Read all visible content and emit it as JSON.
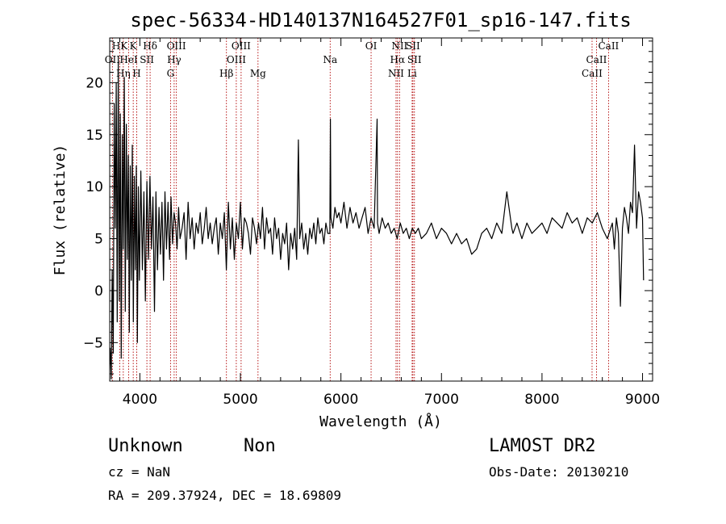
{
  "chart_data": {
    "type": "line",
    "title": "spec-56334-HD140137N164527F01_sp16-147.fits",
    "xlabel": "Wavelength (Å)",
    "ylabel": "Flux (relative)",
    "xlim": [
      3700,
      9100
    ],
    "ylim": [
      -8.7,
      24.3
    ],
    "xticks": [
      4000,
      5000,
      6000,
      7000,
      8000,
      9000
    ],
    "yticks": [
      -5,
      0,
      5,
      10,
      15,
      20
    ],
    "grid": false,
    "legend": "none",
    "series": [
      {
        "color": "#000000",
        "x": [
          3705,
          3715,
          3725,
          3735,
          3745,
          3755,
          3765,
          3775,
          3785,
          3795,
          3805,
          3815,
          3825,
          3835,
          3845,
          3855,
          3865,
          3875,
          3885,
          3895,
          3905,
          3915,
          3925,
          3935,
          3945,
          3955,
          3965,
          3975,
          3985,
          3995,
          4010,
          4025,
          4040,
          4055,
          4070,
          4085,
          4100,
          4115,
          4130,
          4145,
          4160,
          4175,
          4190,
          4205,
          4220,
          4235,
          4250,
          4265,
          4280,
          4295,
          4310,
          4325,
          4340,
          4355,
          4370,
          4385,
          4400,
          4420,
          4440,
          4460,
          4480,
          4500,
          4520,
          4540,
          4560,
          4580,
          4600,
          4620,
          4640,
          4660,
          4680,
          4700,
          4720,
          4740,
          4760,
          4780,
          4800,
          4820,
          4840,
          4860,
          4880,
          4900,
          4920,
          4940,
          4960,
          4980,
          5000,
          5020,
          5040,
          5060,
          5080,
          5100,
          5120,
          5140,
          5160,
          5180,
          5200,
          5220,
          5240,
          5260,
          5280,
          5300,
          5320,
          5340,
          5360,
          5380,
          5400,
          5420,
          5440,
          5460,
          5480,
          5500,
          5520,
          5540,
          5560,
          5577,
          5590,
          5610,
          5630,
          5650,
          5670,
          5690,
          5710,
          5730,
          5750,
          5770,
          5790,
          5810,
          5830,
          5850,
          5870,
          5890,
          5895,
          5900,
          5920,
          5940,
          5960,
          5980,
          6000,
          6030,
          6060,
          6090,
          6120,
          6150,
          6180,
          6210,
          6240,
          6270,
          6300,
          6330,
          6360,
          6364,
          6380,
          6410,
          6440,
          6470,
          6500,
          6530,
          6560,
          6590,
          6620,
          6650,
          6680,
          6710,
          6740,
          6770,
          6800,
          6850,
          6900,
          6950,
          7000,
          7050,
          7100,
          7150,
          7200,
          7250,
          7300,
          7350,
          7400,
          7450,
          7500,
          7550,
          7600,
          7650,
          7700,
          7712,
          7750,
          7800,
          7850,
          7900,
          7950,
          8000,
          8050,
          8100,
          8150,
          8200,
          8250,
          8300,
          8350,
          8400,
          8450,
          8500,
          8550,
          8600,
          8650,
          8700,
          8720,
          8740,
          8760,
          8780,
          8800,
          8820,
          8840,
          8860,
          8880,
          8900,
          8920,
          8940,
          8960,
          8980,
          9000,
          9010
        ],
        "y": [
          -5.5,
          -8.5,
          2.0,
          -6.0,
          18.0,
          6.0,
          20.0,
          -3.0,
          22.0,
          -1.0,
          17.0,
          -6.5,
          15.0,
          4.0,
          20.5,
          -2.0,
          16.0,
          3.0,
          13.0,
          -4.0,
          12.0,
          1.0,
          14.0,
          -3.0,
          11.0,
          2.0,
          12.0,
          -5.0,
          10.0,
          1.0,
          11.5,
          2.0,
          9.5,
          -1.0,
          10.5,
          3.0,
          11.0,
          4.0,
          9.0,
          -2.0,
          9.5,
          2.0,
          8.0,
          3.5,
          8.5,
          1.0,
          9.5,
          4.0,
          8.5,
          3.0,
          9.0,
          4.5,
          7.5,
          6.5,
          4.0,
          8.0,
          5.0,
          6.0,
          7.5,
          3.0,
          8.5,
          5.0,
          7.0,
          4.0,
          6.5,
          5.5,
          7.5,
          4.5,
          6.0,
          8.0,
          5.0,
          6.5,
          4.5,
          6.0,
          7.0,
          3.5,
          6.5,
          5.0,
          7.5,
          2.0,
          8.5,
          4.0,
          7.0,
          3.0,
          6.5,
          5.0,
          8.5,
          4.0,
          7.0,
          6.5,
          5.5,
          3.5,
          7.0,
          6.0,
          4.5,
          6.5,
          5.0,
          8.0,
          4.0,
          7.0,
          5.5,
          6.0,
          3.5,
          7.0,
          5.0,
          6.0,
          3.0,
          5.5,
          4.5,
          6.5,
          2.0,
          5.5,
          4.0,
          6.0,
          3.0,
          14.5,
          5.0,
          6.5,
          4.0,
          5.5,
          3.5,
          6.0,
          5.0,
          6.5,
          4.5,
          7.0,
          5.5,
          6.0,
          4.5,
          6.5,
          5.5,
          5.5,
          16.5,
          7.0,
          6.0,
          8.0,
          7.0,
          7.5,
          6.5,
          8.5,
          6.0,
          8.0,
          6.5,
          7.5,
          6.0,
          7.0,
          8.0,
          5.5,
          7.0,
          6.0,
          16.5,
          6.5,
          5.5,
          7.0,
          6.0,
          6.5,
          5.5,
          6.0,
          5.0,
          6.5,
          5.5,
          6.0,
          5.0,
          6.0,
          5.5,
          6.0,
          5.0,
          5.5,
          6.5,
          5.0,
          6.0,
          5.5,
          4.5,
          5.5,
          4.5,
          5.0,
          3.5,
          4.0,
          5.5,
          6.0,
          5.0,
          6.5,
          5.5,
          9.5,
          6.0,
          5.5,
          6.5,
          5.0,
          6.5,
          5.5,
          6.0,
          6.5,
          5.5,
          7.0,
          6.5,
          6.0,
          7.5,
          6.5,
          7.0,
          5.5,
          7.0,
          6.5,
          7.5,
          6.0,
          5.0,
          6.5,
          4.0,
          7.0,
          5.5,
          -1.5,
          6.0,
          8.0,
          7.0,
          5.5,
          8.5,
          7.5,
          14.0,
          6.0,
          9.5,
          8.5,
          7.0,
          1.0
        ]
      }
    ],
    "lines": [
      {
        "label": "HK",
        "wave": 3800,
        "row": 1
      },
      {
        "label": "OII",
        "wave": 3727,
        "row": 2
      },
      {
        "label": "HeI",
        "wave": 3889,
        "row": 2
      },
      {
        "label": "Hη",
        "wave": 3835,
        "row": 3
      },
      {
        "label": "K",
        "wave": 3934,
        "row": 1
      },
      {
        "label": "H",
        "wave": 3969,
        "row": 3
      },
      {
        "label": "Hδ",
        "wave": 4102,
        "row": 1
      },
      {
        "label": "SII",
        "wave": 4070,
        "row": 2
      },
      {
        "label": "OIII",
        "wave": 4363,
        "row": 1
      },
      {
        "label": "Hγ",
        "wave": 4341,
        "row": 2
      },
      {
        "label": "G",
        "wave": 4305,
        "row": 3
      },
      {
        "label": "OIII",
        "wave": 5007,
        "row": 1
      },
      {
        "label": "OIII",
        "wave": 4959,
        "row": 2
      },
      {
        "label": "Hβ",
        "wave": 4861,
        "row": 3
      },
      {
        "label": "Mg",
        "wave": 5175,
        "row": 3
      },
      {
        "label": "Na",
        "wave": 5893,
        "row": 2
      },
      {
        "label": "OI",
        "wave": 6300,
        "row": 1
      },
      {
        "label": "NII",
        "wave": 6583,
        "row": 1
      },
      {
        "label": "Hα",
        "wave": 6563,
        "row": 2
      },
      {
        "label": "NII",
        "wave": 6548,
        "row": 3
      },
      {
        "label": "SII",
        "wave": 6716,
        "row": 1
      },
      {
        "label": "SII",
        "wave": 6731,
        "row": 2
      },
      {
        "label": "Li",
        "wave": 6708,
        "row": 3
      },
      {
        "label": "CaII",
        "wave": 8662,
        "row": 1
      },
      {
        "label": "CaII",
        "wave": 8542,
        "row": 2
      },
      {
        "label": "CaII",
        "wave": 8498,
        "row": 3
      }
    ]
  },
  "info": {
    "class_label": "Unknown",
    "subclass_label": "Non",
    "survey": "LAMOST DR2",
    "cz": "cz = NaN",
    "obs_date": "Obs-Date: 20130210",
    "coords": "RA = 209.37924, DEC =  18.69809"
  }
}
